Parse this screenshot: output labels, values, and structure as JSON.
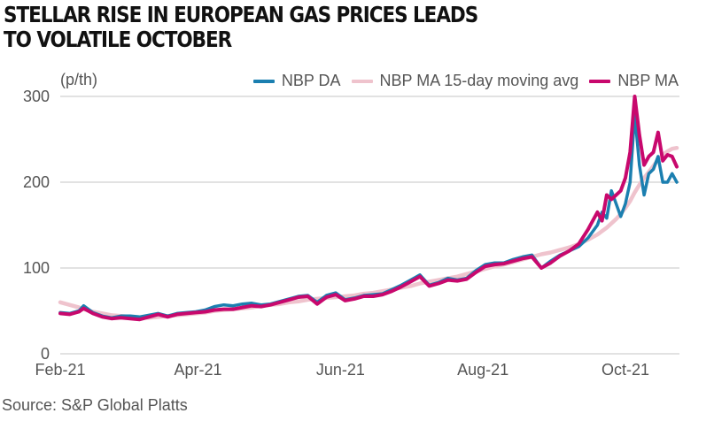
{
  "chart_data": {
    "type": "line",
    "title": "STELLAR RISE IN EUROPEAN GAS PRICES LEADS TO VOLATILE OCTOBER",
    "ylabel": "(p/th)",
    "xlabel": "",
    "ylim": [
      0,
      300
    ],
    "yticks": [
      0,
      100,
      200,
      300
    ],
    "xlim_days": [
      0,
      265
    ],
    "x_origin_date": "2021-02-01",
    "xticks": [
      {
        "day": 0,
        "label": "Feb-21"
      },
      {
        "day": 59,
        "label": "Apr-21"
      },
      {
        "day": 120,
        "label": "Jun-21"
      },
      {
        "day": 181,
        "label": "Aug-21"
      },
      {
        "day": 242,
        "label": "Oct-21"
      }
    ],
    "grid": true,
    "legend_position": "top-right",
    "x_days": [
      0,
      4,
      8,
      10,
      14,
      18,
      22,
      26,
      30,
      34,
      38,
      42,
      46,
      50,
      54,
      58,
      62,
      66,
      70,
      74,
      78,
      82,
      86,
      90,
      94,
      98,
      102,
      106,
      110,
      114,
      118,
      122,
      126,
      130,
      134,
      138,
      142,
      146,
      150,
      154,
      158,
      162,
      166,
      170,
      174,
      178,
      182,
      186,
      190,
      194,
      198,
      202,
      206,
      210,
      214,
      218,
      222,
      226,
      230,
      232,
      234,
      236,
      238,
      240,
      242,
      244,
      246,
      248,
      250,
      252,
      254,
      256,
      258,
      260,
      262,
      264
    ],
    "series": [
      {
        "name": "NBP DA",
        "color": "#1b7fb0",
        "values": [
          48,
          47,
          50,
          56,
          48,
          44,
          42,
          44,
          44,
          43,
          45,
          47,
          44,
          47,
          48,
          49,
          51,
          55,
          57,
          56,
          58,
          59,
          57,
          58,
          61,
          64,
          67,
          68,
          60,
          68,
          71,
          63,
          65,
          68,
          69,
          70,
          75,
          80,
          86,
          92,
          80,
          83,
          88,
          86,
          88,
          97,
          104,
          106,
          106,
          110,
          113,
          115,
          100,
          108,
          115,
          120,
          125,
          135,
          150,
          165,
          158,
          190,
          175,
          160,
          175,
          200,
          280,
          220,
          185,
          210,
          215,
          230,
          200,
          200,
          210,
          200
        ]
      },
      {
        "name": "NBP MA 15-day moving avg",
        "color": "#efc3cd",
        "values": [
          60,
          57,
          54,
          52,
          49,
          47,
          45,
          44,
          43,
          42,
          42,
          43,
          44,
          45,
          46,
          47,
          48,
          50,
          51,
          52,
          53,
          54,
          56,
          57,
          58,
          60,
          61,
          63,
          64,
          65,
          66,
          67,
          68,
          70,
          71,
          73,
          75,
          77,
          79,
          82,
          84,
          86,
          88,
          90,
          93,
          96,
          99,
          102,
          104,
          107,
          110,
          113,
          116,
          118,
          121,
          124,
          128,
          133,
          139,
          143,
          147,
          152,
          157,
          163,
          170,
          178,
          188,
          197,
          205,
          212,
          219,
          226,
          232,
          236,
          239,
          240
        ]
      },
      {
        "name": "NBP MA",
        "color": "#c8086d",
        "values": [
          47,
          46,
          49,
          53,
          47,
          43,
          41,
          42,
          41,
          40,
          43,
          46,
          43,
          46,
          47,
          48,
          49,
          51,
          52,
          52,
          54,
          56,
          55,
          57,
          60,
          63,
          66,
          67,
          58,
          66,
          69,
          62,
          64,
          67,
          67,
          69,
          73,
          78,
          84,
          90,
          79,
          82,
          86,
          85,
          87,
          95,
          102,
          104,
          105,
          108,
          111,
          113,
          100,
          106,
          114,
          120,
          128,
          145,
          165,
          155,
          185,
          180,
          185,
          190,
          205,
          235,
          300,
          255,
          220,
          230,
          235,
          258,
          225,
          232,
          230,
          218
        ]
      }
    ]
  },
  "source_text": "Source: S&P Global Platts",
  "unit_label": "(p/th)",
  "title_line1": "STELLAR RISE IN EUROPEAN GAS PRICES LEADS",
  "title_line2": "TO VOLATILE OCTOBER"
}
